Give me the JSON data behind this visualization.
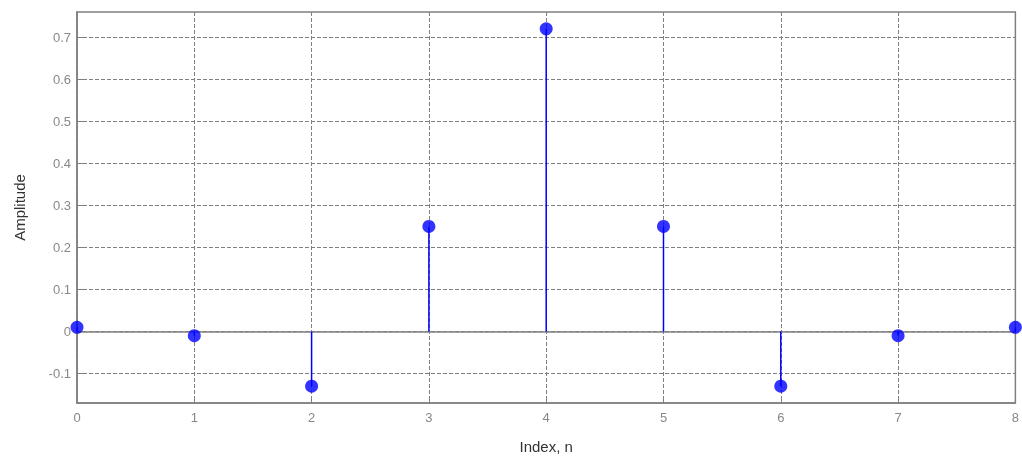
{
  "chart_data": {
    "type": "lollipop",
    "xlabel": "Index, n",
    "ylabel": "Amplitude",
    "x": [
      0,
      1,
      2,
      3,
      4,
      5,
      6,
      7,
      8
    ],
    "values": [
      0.01,
      -0.01,
      -0.13,
      0.25,
      0.72,
      0.25,
      -0.13,
      -0.01,
      0.01
    ],
    "color": "#0000ff",
    "marker": "circle",
    "xlim": [
      0,
      8
    ],
    "xticks": [
      0,
      1,
      2,
      3,
      4,
      5,
      6,
      7,
      8
    ],
    "ylim": [
      -0.17,
      0.76
    ],
    "yticks": [
      -0.1,
      0,
      0.1,
      0.2,
      0.3,
      0.4,
      0.5,
      0.6,
      0.7
    ],
    "grid": true,
    "line_style": "dashed"
  }
}
